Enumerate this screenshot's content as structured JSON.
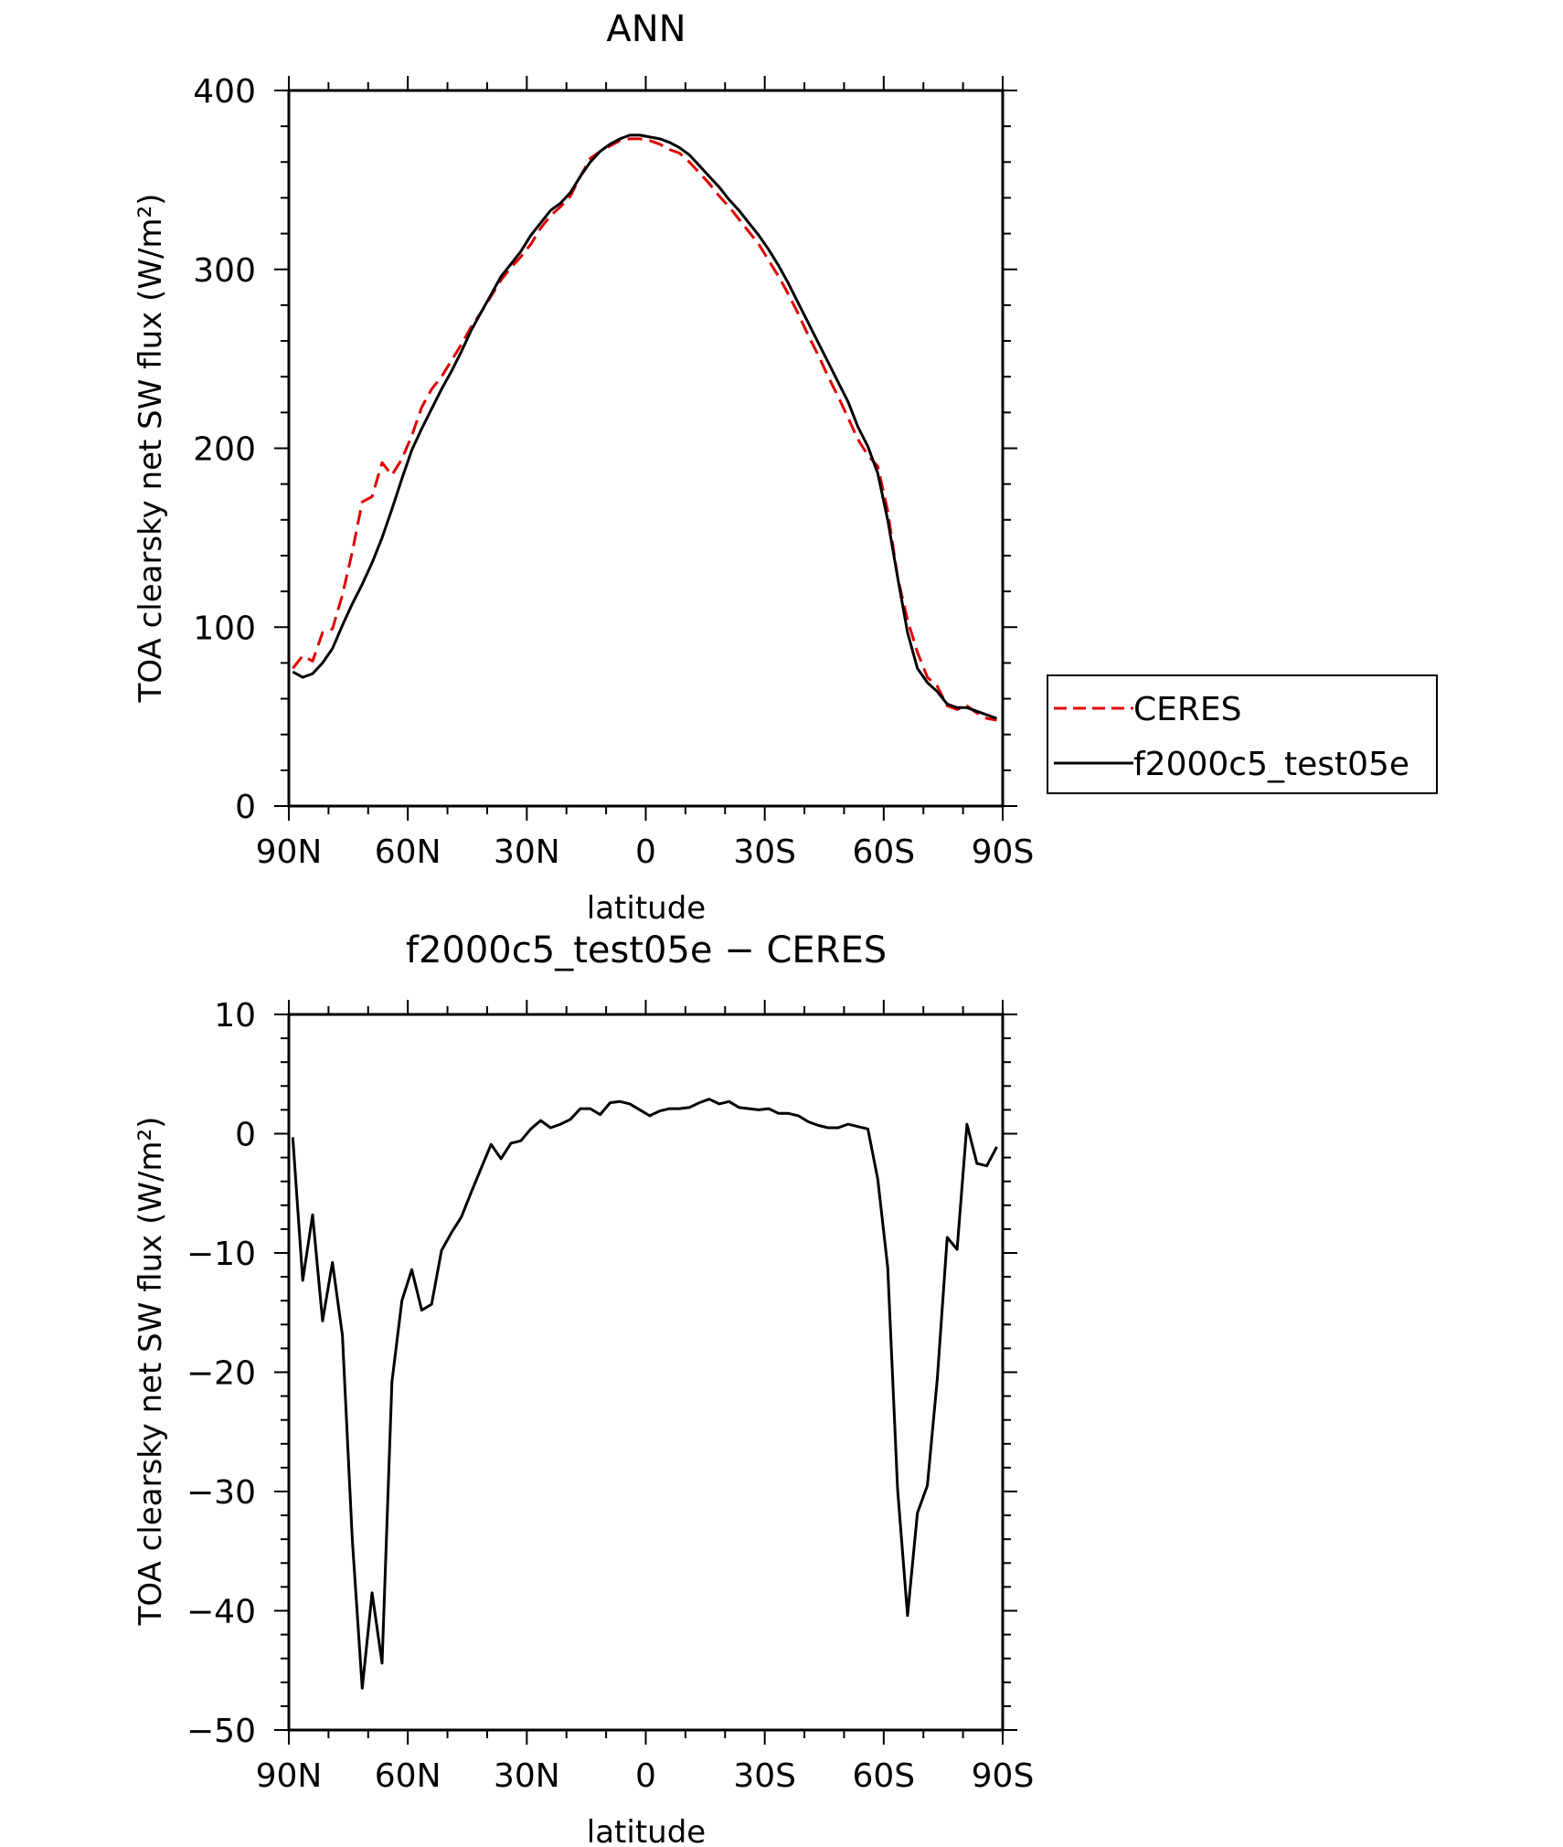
{
  "chart_data": [
    {
      "type": "line",
      "title": "ANN",
      "xlabel": "latitude",
      "ylabel": "TOA clearsky net SW flux (W/m²)",
      "x_ticks": [
        "90N",
        "60N",
        "30N",
        "0",
        "30S",
        "60S",
        "90S"
      ],
      "y_ticks": [
        "0",
        "100",
        "200",
        "300",
        "400"
      ],
      "xlim": [
        90,
        -90
      ],
      "ylim": [
        0,
        400
      ],
      "legend_position": "right",
      "series": [
        {
          "name": "CERES",
          "color": "#e00000",
          "style": "dashed",
          "x": [
            89,
            86.5,
            84,
            81.5,
            79,
            76.5,
            74,
            71.5,
            69,
            66.5,
            64,
            61.5,
            59,
            56.5,
            54,
            51.5,
            49,
            46.5,
            44,
            41.5,
            39,
            36.5,
            34,
            31.5,
            29,
            26.5,
            24,
            21.5,
            19,
            16.5,
            14,
            11.5,
            9,
            6.5,
            4,
            1.5,
            -1,
            -3.5,
            -6,
            -8.5,
            -11,
            -13.5,
            -16,
            -18.5,
            -21,
            -23.5,
            -26,
            -28.5,
            -31,
            -33.5,
            -36,
            -38.5,
            -41,
            -43.5,
            -46,
            -48.5,
            -51,
            -53.5,
            -56,
            -58.5,
            -61,
            -63.5,
            -66,
            -68.5,
            -71,
            -73.5,
            -76,
            -78.5,
            -81,
            -83.5,
            -86,
            -88.5
          ],
          "y": [
            77,
            84,
            81,
            97,
            99,
            118,
            142,
            170,
            173,
            192,
            185,
            194,
            207,
            223,
            233,
            240,
            249,
            258,
            268,
            276,
            285,
            294,
            301,
            307,
            314,
            323,
            330,
            335,
            341,
            352,
            362,
            366,
            369,
            372,
            373,
            373,
            372,
            370,
            367,
            365,
            360,
            354,
            348,
            341,
            335,
            328,
            321,
            314,
            305,
            296,
            286,
            275,
            263,
            252,
            240,
            229,
            217,
            205,
            196,
            190,
            165,
            128,
            104,
            86,
            72,
            67,
            56,
            54,
            56,
            52,
            49,
            48
          ]
        },
        {
          "name": "f2000c5_test05e",
          "color": "#000000",
          "style": "solid",
          "x": [
            89,
            86.5,
            84,
            81.5,
            79,
            76.5,
            74,
            71.5,
            69,
            66.5,
            64,
            61.5,
            59,
            56.5,
            54,
            51.5,
            49,
            46.5,
            44,
            41.5,
            39,
            36.5,
            34,
            31.5,
            29,
            26.5,
            24,
            21.5,
            19,
            16.5,
            14,
            11.5,
            9,
            6.5,
            4,
            1.5,
            -1,
            -3.5,
            -6,
            -8.5,
            -11,
            -13.5,
            -16,
            -18.5,
            -21,
            -23.5,
            -26,
            -28.5,
            -31,
            -33.5,
            -36,
            -38.5,
            -41,
            -43.5,
            -46,
            -48.5,
            -51,
            -53.5,
            -56,
            -58.5,
            -61,
            -63.5,
            -66,
            -68.5,
            -71,
            -73.5,
            -76,
            -78.5,
            -81,
            -83.5,
            -86,
            -88.5
          ],
          "y": [
            75,
            72,
            74,
            80,
            88,
            101,
            113,
            124,
            136,
            150,
            166,
            183,
            199,
            211,
            222,
            233,
            243,
            254,
            266,
            276,
            286,
            296,
            303,
            310,
            319,
            326,
            333,
            337,
            343,
            352,
            360,
            366,
            370,
            373,
            375,
            375,
            374,
            373,
            371,
            368,
            364,
            358,
            352,
            346,
            339,
            333,
            326,
            319,
            311,
            302,
            292,
            281,
            270,
            259,
            248,
            237,
            226,
            212,
            201,
            186,
            160,
            128,
            97,
            77,
            69,
            64,
            57,
            55,
            55,
            53,
            51,
            49
          ]
        }
      ]
    },
    {
      "type": "line",
      "title": "f2000c5_test05e − CERES",
      "xlabel": "latitude",
      "ylabel": "TOA clearsky net SW flux (W/m²)",
      "x_ticks": [
        "90N",
        "60N",
        "30N",
        "0",
        "30S",
        "60S",
        "90S"
      ],
      "y_ticks": [
        "10",
        "0",
        "−10",
        "−20",
        "−30",
        "−40",
        "−50"
      ],
      "xlim": [
        90,
        -90
      ],
      "ylim": [
        -50,
        10
      ],
      "series": [
        {
          "color": "#000000",
          "style": "solid",
          "x": [
            89,
            86.5,
            84,
            81.5,
            79,
            76.5,
            74,
            71.5,
            69,
            66.5,
            64,
            61.5,
            59,
            56.5,
            54,
            51.5,
            49,
            46.5,
            44,
            41.5,
            39,
            36.5,
            34,
            31.5,
            29,
            26.5,
            24,
            21.5,
            19,
            16.5,
            14,
            11.5,
            9,
            6.5,
            4,
            1.5,
            -1,
            -3.5,
            -6,
            -8.5,
            -11,
            -13.5,
            -16,
            -18.5,
            -21,
            -23.5,
            -26,
            -28.5,
            -31,
            -33.5,
            -36,
            -38.5,
            -41,
            -43.5,
            -46,
            -48.5,
            -51,
            -53.5,
            -56,
            -58.5,
            -61,
            -63.5,
            -66,
            -68.5,
            -71,
            -73.5,
            -76,
            -78.5,
            -81,
            -83.5,
            -86,
            -88.5
          ],
          "y": [
            -0.3,
            -12.3,
            -6.8,
            -15.7,
            -10.8,
            -16.9,
            -34,
            -46.5,
            -38.5,
            -44.4,
            -20.8,
            -14,
            -11.4,
            -14.8,
            -14.3,
            -9.8,
            -8.3,
            -7,
            -4.9,
            -2.9,
            -0.9,
            -2.1,
            -0.8,
            -0.6,
            0.4,
            1.1,
            0.5,
            0.8,
            1.2,
            2.1,
            2.1,
            1.6,
            2.6,
            2.7,
            2.5,
            2,
            1.5,
            1.9,
            2.1,
            2.1,
            2.2,
            2.6,
            2.9,
            2.5,
            2.7,
            2.2,
            2.1,
            2,
            2.1,
            1.7,
            1.7,
            1.5,
            1,
            0.7,
            0.5,
            0.5,
            0.8,
            0.6,
            0.4,
            -3.8,
            -11.2,
            -29.8,
            -40.4,
            -31.8,
            -29.5,
            -20.6,
            -8.7,
            -9.7,
            0.8,
            -2.5,
            -2.7,
            -1.1
          ]
        }
      ]
    }
  ]
}
